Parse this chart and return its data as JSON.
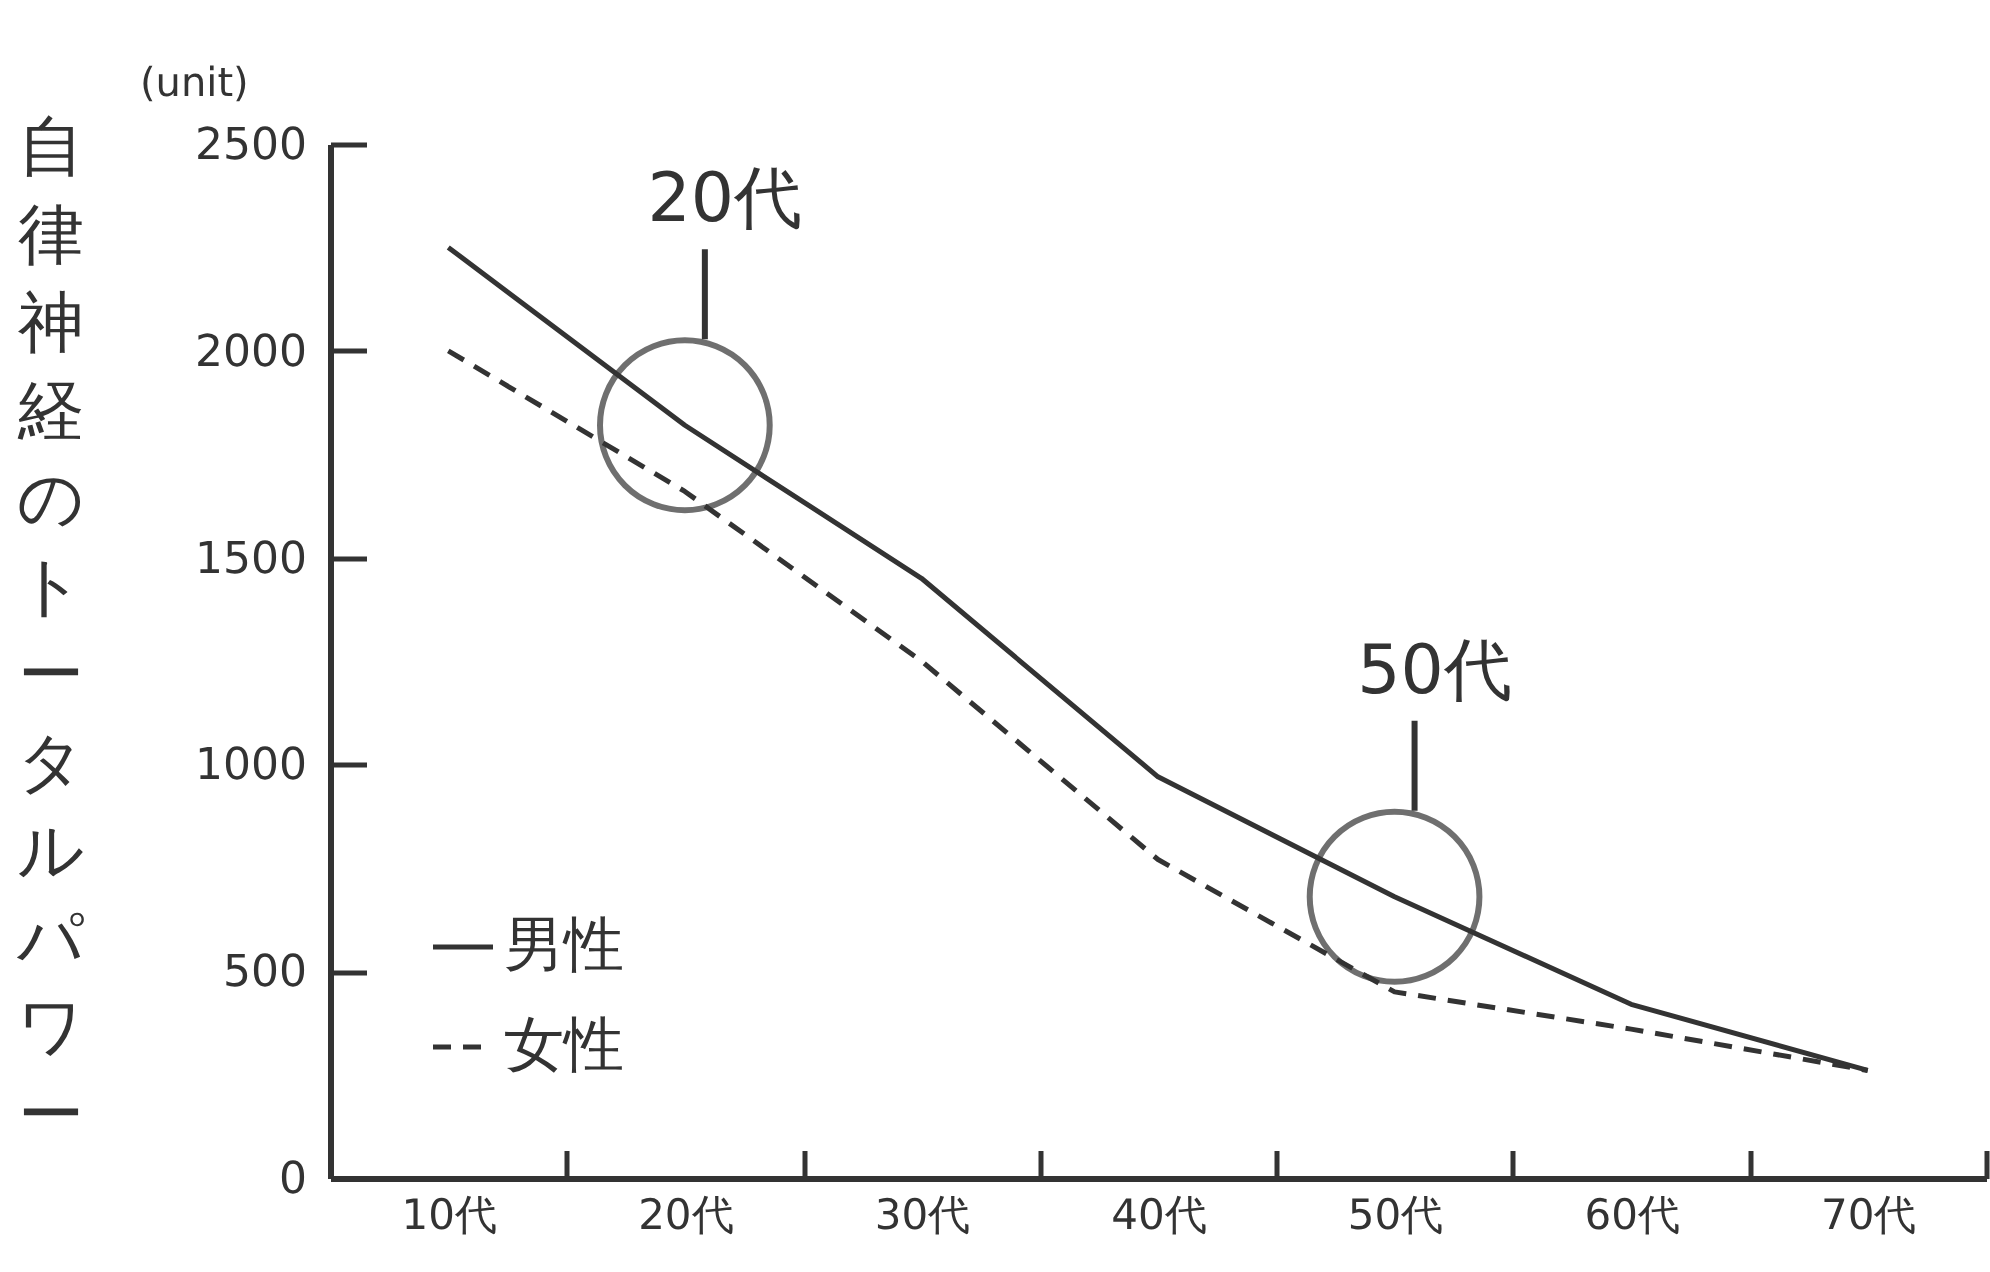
{
  "chart_data": {
    "type": "line",
    "ylabel": "自律神経のトータルパワー",
    "categories": [
      "10代",
      "20代",
      "30代",
      "40代",
      "50代",
      "60代",
      "70代"
    ],
    "series": [
      {
        "name": "男性",
        "color": "#333333",
        "line_style": "solid",
        "values": [
          2250,
          1820,
          1450,
          970,
          680,
          420,
          260
        ]
      },
      {
        "name": "女性",
        "color": "#333333",
        "line_style": "dashed",
        "values": [
          2000,
          1660,
          1250,
          770,
          450,
          360,
          260
        ]
      }
    ],
    "ylim": [
      0,
      2500
    ],
    "yticks": [
      0,
      500,
      1000,
      1500,
      2000,
      2500
    ],
    "annotations": [
      "(unit)",
      {
        "text": "20代",
        "x": "20代",
        "y": 1820
      },
      {
        "text": "50代",
        "x": "50代",
        "y": 680
      }
    ],
    "legend": "bottom left",
    "grid": false,
    "marker": "none"
  }
}
